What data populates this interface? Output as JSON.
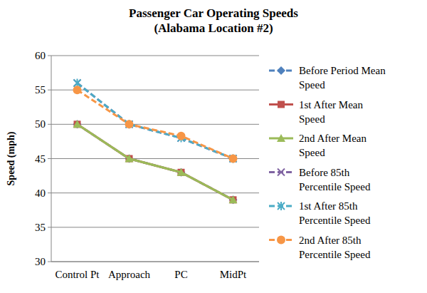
{
  "chart_data": {
    "type": "line",
    "title": "Passenger Car Operating Speeds",
    "subtitle": "(Alabama Location #2)",
    "y_label": "Speed (mph)",
    "categories": [
      "Control Pt",
      "Approach",
      "PC",
      "MidPt"
    ],
    "ylim": [
      30,
      60
    ],
    "yticks": [
      30,
      35,
      40,
      45,
      50,
      55,
      60
    ],
    "grid": true,
    "legend": "right",
    "series": [
      {
        "name": "Before Period Mean Speed",
        "color": "#4f81bd",
        "marker": "diamond",
        "line_style": "dashed",
        "values": [
          50,
          45,
          43,
          39
        ]
      },
      {
        "name": "1st After Mean Speed",
        "color": "#c0504d",
        "marker": "square",
        "line_style": "solid",
        "values": [
          50,
          45,
          43,
          39
        ]
      },
      {
        "name": "2nd After Mean Speed",
        "color": "#9bbb59",
        "marker": "triangle",
        "line_style": "solid",
        "values": [
          50,
          45,
          43,
          39
        ]
      },
      {
        "name": "Before 85th Percentile Speed",
        "color": "#8064a2",
        "marker": "x",
        "line_style": "dashed",
        "values": [
          56,
          50,
          48,
          45
        ]
      },
      {
        "name": "1st After 85th Percentile Speed",
        "color": "#4bacc6",
        "marker": "star",
        "line_style": "dashed",
        "values": [
          56,
          50,
          48,
          45
        ]
      },
      {
        "name": "2nd After 85th Percentile Speed",
        "color": "#f79646",
        "marker": "circle",
        "line_style": "dashed",
        "values": [
          55,
          50,
          48.3,
          45
        ]
      }
    ]
  }
}
